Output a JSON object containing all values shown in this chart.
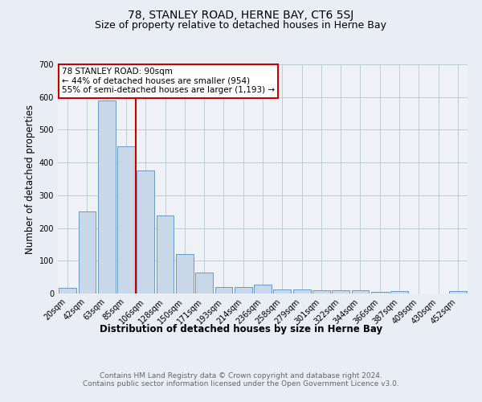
{
  "title": "78, STANLEY ROAD, HERNE BAY, CT6 5SJ",
  "subtitle": "Size of property relative to detached houses in Herne Bay",
  "xlabel": "Distribution of detached houses by size in Herne Bay",
  "ylabel": "Number of detached properties",
  "categories": [
    "20sqm",
    "42sqm",
    "63sqm",
    "85sqm",
    "106sqm",
    "128sqm",
    "150sqm",
    "171sqm",
    "193sqm",
    "214sqm",
    "236sqm",
    "258sqm",
    "279sqm",
    "301sqm",
    "322sqm",
    "344sqm",
    "366sqm",
    "387sqm",
    "409sqm",
    "430sqm",
    "452sqm"
  ],
  "values": [
    18,
    250,
    590,
    450,
    375,
    238,
    120,
    65,
    20,
    20,
    28,
    13,
    12,
    10,
    10,
    10,
    5,
    8,
    0,
    0,
    7
  ],
  "bar_color": "#c8d8e8",
  "bar_edge_color": "#5a8fc0",
  "vline_x": 3.5,
  "vline_color": "#cc0000",
  "annotation_text": "78 STANLEY ROAD: 90sqm\n← 44% of detached houses are smaller (954)\n55% of semi-detached houses are larger (1,193) →",
  "annotation_box_color": "#ffffff",
  "annotation_box_edge_color": "#cc0000",
  "ylim": [
    0,
    700
  ],
  "yticks": [
    0,
    100,
    200,
    300,
    400,
    500,
    600,
    700
  ],
  "background_color": "#e8eef4",
  "plot_bg_color": "#eef2f7",
  "footer_text": "Contains HM Land Registry data © Crown copyright and database right 2024.\nContains public sector information licensed under the Open Government Licence v3.0.",
  "title_fontsize": 10,
  "subtitle_fontsize": 9,
  "xlabel_fontsize": 8.5,
  "ylabel_fontsize": 8.5,
  "tick_fontsize": 7,
  "annotation_fontsize": 7.5,
  "footer_fontsize": 6.5
}
